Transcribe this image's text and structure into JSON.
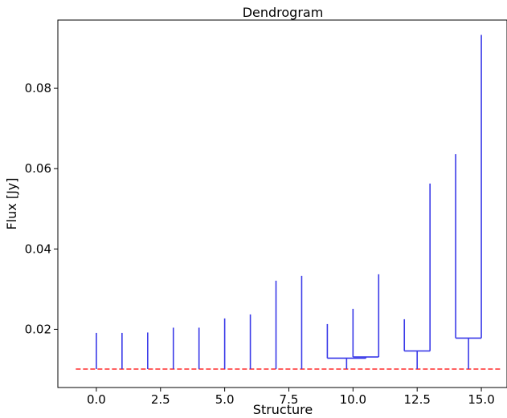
{
  "chart_data": {
    "type": "dendrogram",
    "title": "Dendrogram",
    "xlabel": "Structure",
    "ylabel": "Flux [Jy]",
    "xlim": [
      -1.5,
      16.0
    ],
    "ylim": [
      0.0055,
      0.097
    ],
    "xticks": [
      0.0,
      2.5,
      5.0,
      7.5,
      10.0,
      12.5,
      15.0
    ],
    "xtick_labels": [
      "0.0",
      "2.5",
      "5.0",
      "7.5",
      "10.0",
      "12.5",
      "15.0"
    ],
    "yticks": [
      0.02,
      0.04,
      0.06,
      0.08
    ],
    "ytick_labels": [
      "0.02",
      "0.04",
      "0.06",
      "0.08"
    ],
    "grid": false,
    "line_color": "#3a3ae8",
    "threshold": {
      "y": 0.0101,
      "x_range": [
        -0.8,
        15.8
      ],
      "color": "#ff2a2a",
      "style": "dashed"
    },
    "leaves": [
      {
        "x": 0,
        "y0": 0.0101,
        "y1": 0.0191
      },
      {
        "x": 1,
        "y0": 0.0101,
        "y1": 0.0191
      },
      {
        "x": 2,
        "y0": 0.0101,
        "y1": 0.0192
      },
      {
        "x": 3,
        "y0": 0.0101,
        "y1": 0.0204
      },
      {
        "x": 4,
        "y0": 0.0101,
        "y1": 0.0204
      },
      {
        "x": 5,
        "y0": 0.0101,
        "y1": 0.0227
      },
      {
        "x": 6,
        "y0": 0.0101,
        "y1": 0.0237
      },
      {
        "x": 7,
        "y0": 0.0101,
        "y1": 0.0321
      },
      {
        "x": 8,
        "y0": 0.0101,
        "y1": 0.0333
      },
      {
        "x": 9,
        "y0": 0.0128,
        "y1": 0.0213
      },
      {
        "x": 10,
        "y0": 0.0131,
        "y1": 0.0251
      },
      {
        "x": 11,
        "y0": 0.0131,
        "y1": 0.0337
      },
      {
        "x": 12,
        "y0": 0.0146,
        "y1": 0.0225
      },
      {
        "x": 13,
        "y0": 0.0146,
        "y1": 0.0563
      },
      {
        "x": 14,
        "y0": 0.0178,
        "y1": 0.0636
      },
      {
        "x": 15,
        "y0": 0.0178,
        "y1": 0.0933
      }
    ],
    "branches": [
      {
        "x0": 10.0,
        "x1": 11.0,
        "y": 0.0131,
        "stem_x": 10.5,
        "stem_y0": 0.0128
      },
      {
        "x0": 9.0,
        "x1": 10.5,
        "y": 0.0128,
        "stem_x": 9.75,
        "stem_y0": 0.0101
      },
      {
        "x0": 12.0,
        "x1": 13.0,
        "y": 0.0146,
        "stem_x": 12.5,
        "stem_y0": 0.0101
      },
      {
        "x0": 14.0,
        "x1": 15.0,
        "y": 0.0178,
        "stem_x": 14.5,
        "stem_y0": 0.0101
      }
    ]
  }
}
